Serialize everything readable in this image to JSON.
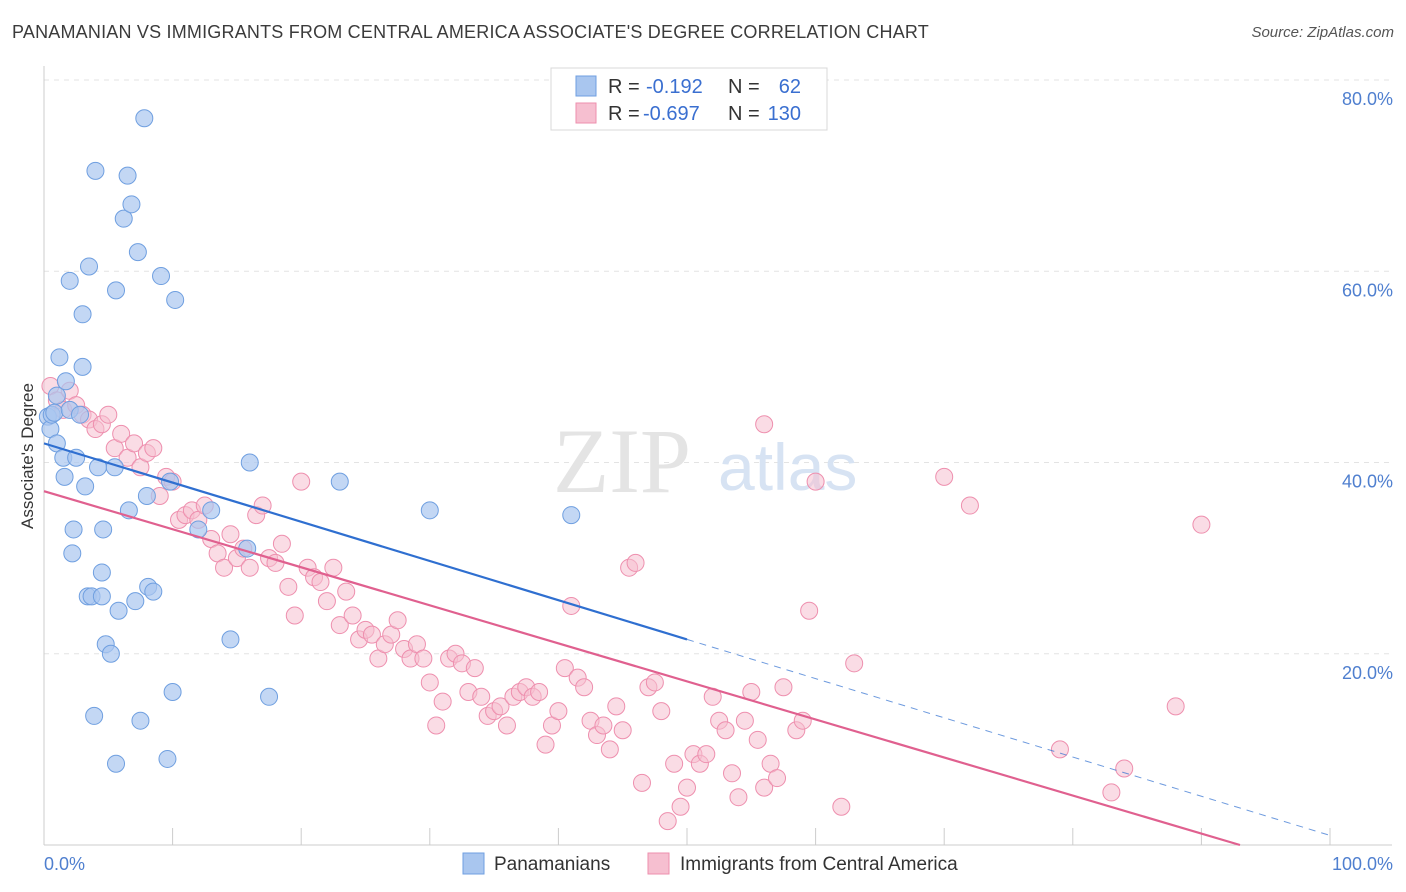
{
  "title": "PANAMANIAN VS IMMIGRANTS FROM CENTRAL AMERICA ASSOCIATE'S DEGREE CORRELATION CHART",
  "source": "Source: ZipAtlas.com",
  "watermark": {
    "zip": "ZIP",
    "atlas": "atlas"
  },
  "legend_top": [
    {
      "r_label": "R =",
      "r_value": "-0.192",
      "n_label": "N =",
      "n_value": "62"
    },
    {
      "r_label": "R =",
      "r_value": "-0.697",
      "n_label": "N =",
      "n_value": "130"
    }
  ],
  "colors": {
    "blue_fill": "#a9c6ef",
    "blue_stroke": "#6f9fe0",
    "blue_line": "#2f6fd0",
    "pink_fill": "#f6bfd0",
    "pink_stroke": "#ee8fae",
    "pink_line": "#e0608f",
    "grid": "#e3e3e3",
    "axis": "#cccccc",
    "tick_text": "#4f7fcf"
  },
  "chart_data": {
    "type": "scatter",
    "title": "PANAMANIAN VS IMMIGRANTS FROM CENTRAL AMERICA ASSOCIATE'S DEGREE CORRELATION CHART",
    "xlabel": "",
    "ylabel": "Associate's Degree",
    "xlim": [
      0,
      100
    ],
    "ylim": [
      0,
      80
    ],
    "x_tick_labels": [
      "0.0%",
      "100.0%"
    ],
    "y_ticks": [
      20,
      40,
      60,
      80
    ],
    "y_tick_labels": [
      "20.0%",
      "40.0%",
      "60.0%",
      "80.0%"
    ],
    "grid": true,
    "legend_position": "bottom-center",
    "series": [
      {
        "name": "Panamanians",
        "color": "#a9c6ef",
        "trend": {
          "x": [
            0,
            50
          ],
          "y": [
            42.0,
            21.5
          ],
          "dashed_to_x": 100,
          "dashed_to_y": 1.0
        },
        "points": [
          [
            0.3,
            44.8
          ],
          [
            0.5,
            43.5
          ],
          [
            0.6,
            45.0
          ],
          [
            0.8,
            45.2
          ],
          [
            1.0,
            42.0
          ],
          [
            1.0,
            47.0
          ],
          [
            1.2,
            51.0
          ],
          [
            1.5,
            40.5
          ],
          [
            1.6,
            38.5
          ],
          [
            1.7,
            48.5
          ],
          [
            2.0,
            59.0
          ],
          [
            2.0,
            45.5
          ],
          [
            2.2,
            30.5
          ],
          [
            2.3,
            33.0
          ],
          [
            2.5,
            40.5
          ],
          [
            2.8,
            45.0
          ],
          [
            3.0,
            55.5
          ],
          [
            3.0,
            50.0
          ],
          [
            3.2,
            37.5
          ],
          [
            3.4,
            26.0
          ],
          [
            3.5,
            60.5
          ],
          [
            3.7,
            26.0
          ],
          [
            3.9,
            13.5
          ],
          [
            4.0,
            70.5
          ],
          [
            4.2,
            39.5
          ],
          [
            4.5,
            28.5
          ],
          [
            4.5,
            26.0
          ],
          [
            4.6,
            33.0
          ],
          [
            4.8,
            21.0
          ],
          [
            5.2,
            20.0
          ],
          [
            5.5,
            39.5
          ],
          [
            5.6,
            58.0
          ],
          [
            5.6,
            8.5
          ],
          [
            5.8,
            24.5
          ],
          [
            6.2,
            65.5
          ],
          [
            6.5,
            70.0
          ],
          [
            6.6,
            35.0
          ],
          [
            6.8,
            67.0
          ],
          [
            7.1,
            25.5
          ],
          [
            7.3,
            62.0
          ],
          [
            7.5,
            13.0
          ],
          [
            7.8,
            76.0
          ],
          [
            8.0,
            36.5
          ],
          [
            8.1,
            27.0
          ],
          [
            8.5,
            26.5
          ],
          [
            9.1,
            59.5
          ],
          [
            9.6,
            9.0
          ],
          [
            9.8,
            38.0
          ],
          [
            10.0,
            16.0
          ],
          [
            10.2,
            57.0
          ],
          [
            12.0,
            33.0
          ],
          [
            13.0,
            35.0
          ],
          [
            14.5,
            21.5
          ],
          [
            15.8,
            31.0
          ],
          [
            16.0,
            40.0
          ],
          [
            17.5,
            15.5
          ],
          [
            23.0,
            38.0
          ],
          [
            30.0,
            35.0
          ],
          [
            41.0,
            34.5
          ]
        ]
      },
      {
        "name": "Immigrants from Central America",
        "color": "#f6bfd0",
        "trend": {
          "x": [
            0,
            93
          ],
          "y": [
            37.0,
            0.0
          ]
        },
        "points": [
          [
            0.5,
            48.0
          ],
          [
            1.0,
            46.5
          ],
          [
            1.5,
            45.5
          ],
          [
            2.0,
            47.5
          ],
          [
            2.5,
            46.0
          ],
          [
            3.0,
            45.0
          ],
          [
            3.5,
            44.5
          ],
          [
            4.0,
            43.5
          ],
          [
            4.5,
            44.0
          ],
          [
            5.0,
            45.0
          ],
          [
            5.5,
            41.5
          ],
          [
            6.0,
            43.0
          ],
          [
            6.5,
            40.5
          ],
          [
            7.0,
            42.0
          ],
          [
            7.5,
            39.5
          ],
          [
            8.0,
            41.0
          ],
          [
            8.5,
            41.5
          ],
          [
            9.0,
            36.5
          ],
          [
            9.5,
            38.5
          ],
          [
            10.0,
            38.0
          ],
          [
            10.5,
            34.0
          ],
          [
            11.0,
            34.5
          ],
          [
            11.5,
            35.0
          ],
          [
            12.0,
            34.0
          ],
          [
            12.5,
            35.5
          ],
          [
            13.0,
            32.0
          ],
          [
            13.5,
            30.5
          ],
          [
            14.0,
            29.0
          ],
          [
            14.5,
            32.5
          ],
          [
            15.0,
            30.0
          ],
          [
            15.5,
            31.0
          ],
          [
            16.0,
            29.0
          ],
          [
            16.5,
            34.5
          ],
          [
            17.0,
            35.5
          ],
          [
            17.5,
            30.0
          ],
          [
            18.0,
            29.5
          ],
          [
            18.5,
            31.5
          ],
          [
            19.0,
            27.0
          ],
          [
            19.5,
            24.0
          ],
          [
            20.0,
            38.0
          ],
          [
            20.5,
            29.0
          ],
          [
            21.0,
            28.0
          ],
          [
            21.5,
            27.5
          ],
          [
            22.0,
            25.5
          ],
          [
            22.5,
            29.0
          ],
          [
            23.0,
            23.0
          ],
          [
            23.5,
            26.5
          ],
          [
            24.0,
            24.0
          ],
          [
            24.5,
            21.5
          ],
          [
            25.0,
            22.5
          ],
          [
            25.5,
            22.0
          ],
          [
            26.0,
            19.5
          ],
          [
            26.5,
            21.0
          ],
          [
            27.0,
            22.0
          ],
          [
            27.5,
            23.5
          ],
          [
            28.0,
            20.5
          ],
          [
            28.5,
            19.5
          ],
          [
            29.0,
            21.0
          ],
          [
            29.5,
            19.5
          ],
          [
            30.0,
            17.0
          ],
          [
            30.5,
            12.5
          ],
          [
            31.0,
            15.0
          ],
          [
            31.5,
            19.5
          ],
          [
            32.0,
            20.0
          ],
          [
            32.5,
            19.0
          ],
          [
            33.0,
            16.0
          ],
          [
            33.5,
            18.5
          ],
          [
            34.0,
            15.5
          ],
          [
            34.5,
            13.5
          ],
          [
            35.0,
            14.0
          ],
          [
            35.5,
            14.5
          ],
          [
            36.0,
            12.5
          ],
          [
            36.5,
            15.5
          ],
          [
            37.0,
            16.0
          ],
          [
            37.5,
            16.5
          ],
          [
            38.0,
            15.5
          ],
          [
            38.5,
            16.0
          ],
          [
            39.0,
            10.5
          ],
          [
            39.5,
            12.5
          ],
          [
            40.0,
            14.0
          ],
          [
            40.5,
            18.5
          ],
          [
            41.0,
            25.0
          ],
          [
            41.5,
            17.5
          ],
          [
            42.0,
            16.5
          ],
          [
            42.5,
            13.0
          ],
          [
            43.0,
            11.5
          ],
          [
            43.5,
            12.5
          ],
          [
            44.0,
            10.0
          ],
          [
            44.5,
            14.5
          ],
          [
            45.0,
            12.0
          ],
          [
            45.5,
            29.0
          ],
          [
            46.0,
            29.5
          ],
          [
            46.5,
            6.5
          ],
          [
            47.0,
            16.5
          ],
          [
            47.5,
            17.0
          ],
          [
            48.0,
            14.0
          ],
          [
            48.5,
            2.5
          ],
          [
            49.0,
            8.5
          ],
          [
            49.5,
            4.0
          ],
          [
            50.0,
            6.0
          ],
          [
            50.5,
            9.5
          ],
          [
            51.0,
            8.5
          ],
          [
            51.5,
            9.5
          ],
          [
            52.0,
            15.5
          ],
          [
            52.5,
            13.0
          ],
          [
            53.0,
            12.0
          ],
          [
            53.5,
            7.5
          ],
          [
            54.0,
            5.0
          ],
          [
            54.5,
            13.0
          ],
          [
            55.0,
            16.0
          ],
          [
            55.5,
            11.0
          ],
          [
            56.0,
            6.0
          ],
          [
            56.5,
            8.5
          ],
          [
            57.0,
            7.0
          ],
          [
            57.5,
            16.5
          ],
          [
            58.5,
            12.0
          ],
          [
            59.0,
            13.0
          ],
          [
            59.5,
            24.5
          ],
          [
            60.0,
            38.0
          ],
          [
            62.0,
            4.0
          ],
          [
            63.0,
            19.0
          ],
          [
            70.0,
            38.5
          ],
          [
            72.0,
            35.5
          ],
          [
            79.0,
            10.0
          ],
          [
            83.0,
            5.5
          ],
          [
            84.0,
            8.0
          ],
          [
            88.0,
            14.5
          ],
          [
            56.0,
            44.0
          ],
          [
            90.0,
            33.5
          ]
        ]
      }
    ]
  },
  "bottom_legend": [
    "Panamanians",
    "Immigrants from Central America"
  ]
}
